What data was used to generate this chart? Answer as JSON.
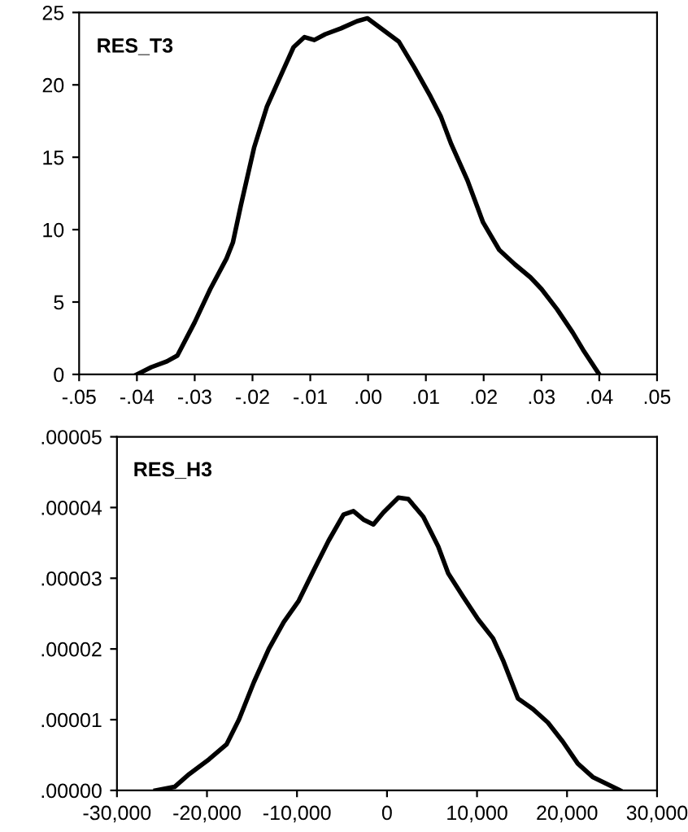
{
  "chart_data": [
    {
      "type": "line",
      "title": "RES_T3",
      "series": [
        {
          "color": "#000000",
          "x": [
            -0.04,
            -0.0375,
            -0.0348,
            -0.033,
            -0.03,
            -0.0273,
            -0.0245,
            -0.0234,
            -0.022,
            -0.0197,
            -0.0175,
            -0.0147,
            -0.0129,
            -0.011,
            -0.0093,
            -0.0074,
            -0.0047,
            -0.0019,
            -0.0001,
            0.0026,
            0.0053,
            0.008,
            0.0108,
            0.0126,
            0.0144,
            0.0172,
            0.0199,
            0.0227,
            0.0254,
            0.0281,
            0.03,
            0.0327,
            0.0354,
            0.0372,
            0.04
          ],
          "values": [
            0,
            0.5,
            0.9,
            1.3,
            3.6,
            5.9,
            8.0,
            9.1,
            11.7,
            15.7,
            18.5,
            21.0,
            22.6,
            23.3,
            23.1,
            23.5,
            23.9,
            24.4,
            24.6,
            23.8,
            23.0,
            21.2,
            19.2,
            17.8,
            15.9,
            13.4,
            10.5,
            8.6,
            7.6,
            6.7,
            5.9,
            4.5,
            2.9,
            1.7,
            0
          ]
        }
      ],
      "xlim": [
        -0.05,
        0.05
      ],
      "xticks": [
        {
          "value": -0.05,
          "label": "-.05"
        },
        {
          "value": -0.04,
          "label": "-.04"
        },
        {
          "value": -0.03,
          "label": "-.03"
        },
        {
          "value": -0.02,
          "label": "-.02"
        },
        {
          "value": -0.01,
          "label": "-.01"
        },
        {
          "value": 0,
          "label": ".00"
        },
        {
          "value": 0.01,
          "label": ".01"
        },
        {
          "value": 0.02,
          "label": ".02"
        },
        {
          "value": 0.03,
          "label": ".03"
        },
        {
          "value": 0.04,
          "label": ".04"
        },
        {
          "value": 0.05,
          "label": ".05"
        }
      ],
      "ylim": [
        0,
        25
      ],
      "yticks": [
        0,
        5,
        10,
        15,
        20,
        25
      ],
      "grid": false,
      "legend": false,
      "marker": "none",
      "line_style": "solid"
    },
    {
      "type": "line",
      "title": "RES_H3",
      "series": [
        {
          "color": "#000000",
          "x": [
            -25700,
            -23600,
            -21980,
            -19770,
            -17830,
            -16450,
            -14790,
            -13130,
            -11470,
            -9810,
            -8150,
            -6490,
            -4830,
            -3730,
            -2620,
            -1510,
            -400,
            1260,
            2370,
            4030,
            5690,
            6800,
            8460,
            10120,
            11780,
            12890,
            14550,
            16210,
            17870,
            19530,
            21190,
            22850,
            25890
          ],
          "values": [
            0,
            5e-07,
            2.3e-06,
            4.4e-06,
            6.5e-06,
            1e-05,
            1.53e-05,
            2e-05,
            2.38e-05,
            2.68e-05,
            3.11e-05,
            3.53e-05,
            3.9e-05,
            3.95e-05,
            3.83e-05,
            3.76e-05,
            3.93e-05,
            4.14e-05,
            4.12e-05,
            3.87e-05,
            3.45e-05,
            3.07e-05,
            2.74e-05,
            2.42e-05,
            2.15e-05,
            1.84e-05,
            1.3e-05,
            1.15e-05,
            9.6e-06,
            6.9e-06,
            3.8e-06,
            1.9e-06,
            0
          ]
        }
      ],
      "xlim": [
        -30000,
        30000
      ],
      "xticks": [
        {
          "value": -30000,
          "label": "-30,000"
        },
        {
          "value": -20000,
          "label": "-20,000"
        },
        {
          "value": -10000,
          "label": "-10,000"
        },
        0,
        {
          "value": 10000,
          "label": "10,000"
        },
        {
          "value": 20000,
          "label": "20,000"
        },
        {
          "value": 30000,
          "label": "30,000"
        }
      ],
      "ylim": [
        0,
        5e-05
      ],
      "yticks": [
        {
          "value": 0,
          "label": ".00000"
        },
        {
          "value": 1e-05,
          "label": ".00001"
        },
        {
          "value": 2e-05,
          "label": ".00002"
        },
        {
          "value": 3e-05,
          "label": ".00003"
        },
        {
          "value": 4e-05,
          "label": ".00004"
        },
        {
          "value": 5e-05,
          "label": ".00005"
        }
      ],
      "grid": false,
      "legend": false,
      "marker": "none",
      "line_style": "solid"
    }
  ]
}
